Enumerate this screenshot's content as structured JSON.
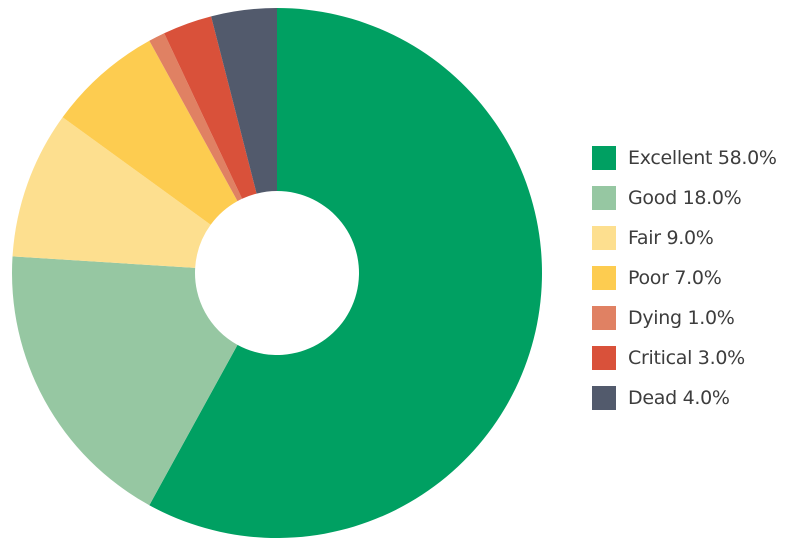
{
  "chart_data": {
    "type": "pie",
    "donut": true,
    "legend_position": "right",
    "series": [
      {
        "name": "Excellent",
        "value": 58.0,
        "label": "Excellent 58.0%",
        "color": "#00A062"
      },
      {
        "name": "Good",
        "value": 18.0,
        "label": "Good 18.0%",
        "color": "#96C7A2"
      },
      {
        "name": "Fair",
        "value": 9.0,
        "label": "Fair 9.0%",
        "color": "#FDDF8F"
      },
      {
        "name": "Poor",
        "value": 7.0,
        "label": "Poor 7.0%",
        "color": "#FDCC50"
      },
      {
        "name": "Dying",
        "value": 1.0,
        "label": "Dying 1.0%",
        "color": "#E08163"
      },
      {
        "name": "Critical",
        "value": 3.0,
        "label": "Critical 3.0%",
        "color": "#D9513A"
      },
      {
        "name": "Dead",
        "value": 4.0,
        "label": "Dead 4.0%",
        "color": "#525A6C"
      }
    ]
  }
}
